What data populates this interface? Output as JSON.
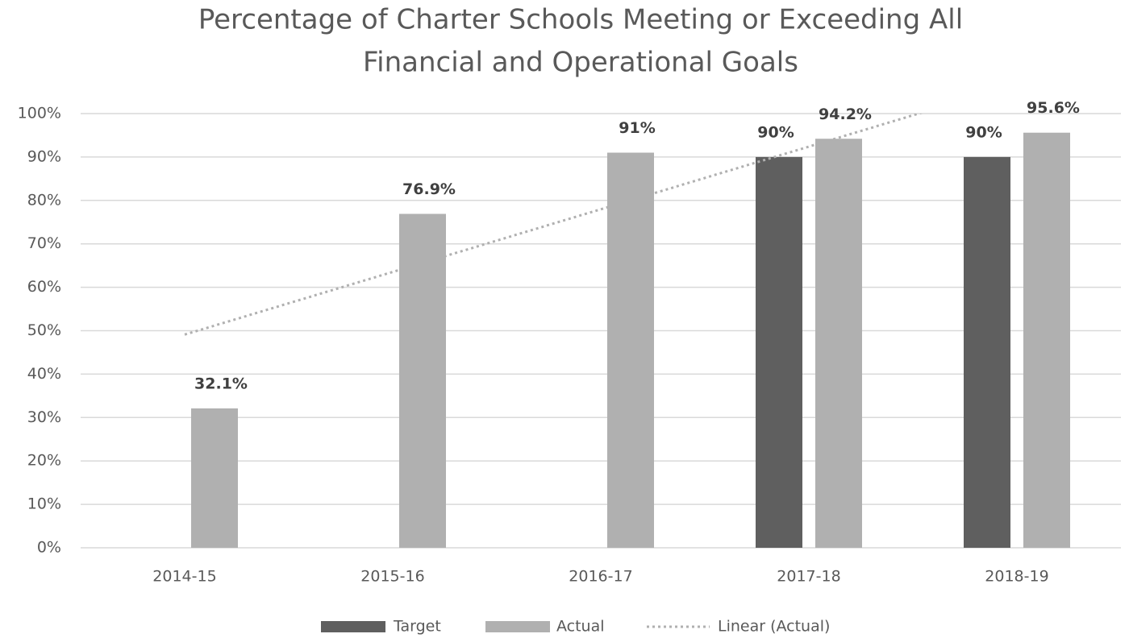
{
  "chart_data": {
    "type": "bar",
    "title": [
      "Percentage of Charter Schools Meeting or Exceeding All",
      "Financial and Operational Goals"
    ],
    "categories": [
      "2014-15",
      "2015-16",
      "2016-17",
      "2017-18",
      "2018-19"
    ],
    "series": [
      {
        "name": "Target",
        "color": "#5f5f5f",
        "values": [
          null,
          null,
          null,
          90,
          90
        ],
        "value_labels": [
          null,
          null,
          null,
          "90%",
          "90%"
        ]
      },
      {
        "name": "Actual",
        "color": "#b0b0b0",
        "values": [
          32.1,
          76.9,
          91,
          94.2,
          95.6
        ],
        "value_labels": [
          "32.1%",
          "76.9%",
          "91%",
          "94.2%",
          "95.6%"
        ]
      }
    ],
    "trendline": {
      "name": "Linear (Actual)",
      "series": 1,
      "color": "#b0b0b0"
    },
    "ylim": [
      0,
      100
    ],
    "yticks": [
      {
        "value": 0,
        "label": "0%"
      },
      {
        "value": 10,
        "label": "10%"
      },
      {
        "value": 20,
        "label": "20%"
      },
      {
        "value": 30,
        "label": "30%"
      },
      {
        "value": 40,
        "label": "40%"
      },
      {
        "value": 50,
        "label": "50%"
      },
      {
        "value": 60,
        "label": "60%"
      },
      {
        "value": 70,
        "label": "70%"
      },
      {
        "value": 80,
        "label": "80%"
      },
      {
        "value": 90,
        "label": "90%"
      },
      {
        "value": 100,
        "label": "100%"
      }
    ],
    "grid": true,
    "legend": "bottom"
  }
}
